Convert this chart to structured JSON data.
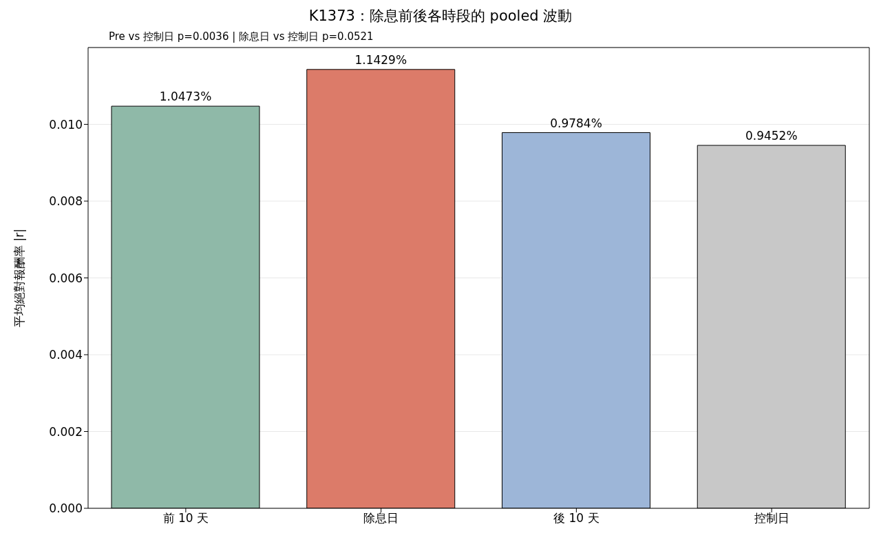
{
  "chart_data": {
    "type": "bar",
    "title": "K1373：除息前後各時段的 pooled 波動",
    "ylabel": "平均絕對報酬率 |r|",
    "categories": [
      "前 10 天",
      "除息日",
      "後 10 天",
      "控制日"
    ],
    "values": [
      0.010473,
      0.011429,
      0.009784,
      0.009452
    ],
    "colors": [
      "#8fb9a8",
      "#dc7b69",
      "#9db6d8",
      "#c8c8c8"
    ],
    "value_labels": [
      "1.0473%",
      "1.1429%",
      "0.9784%",
      "0.9452%"
    ],
    "ylim": [
      0,
      0.012
    ],
    "yticks": [
      {
        "value": 0,
        "label": "0.000"
      },
      {
        "value": 0.002,
        "label": "0.002"
      },
      {
        "value": 0.004,
        "label": "0.004"
      },
      {
        "value": 0.006,
        "label": "0.006"
      },
      {
        "value": 0.008,
        "label": "0.008"
      },
      {
        "value": 0.01,
        "label": "0.010"
      }
    ],
    "grid": "y",
    "annotations": [
      "Pre vs 控制日 p=0.0036 | 除息日 vs 控制日 p=0.0521"
    ]
  }
}
